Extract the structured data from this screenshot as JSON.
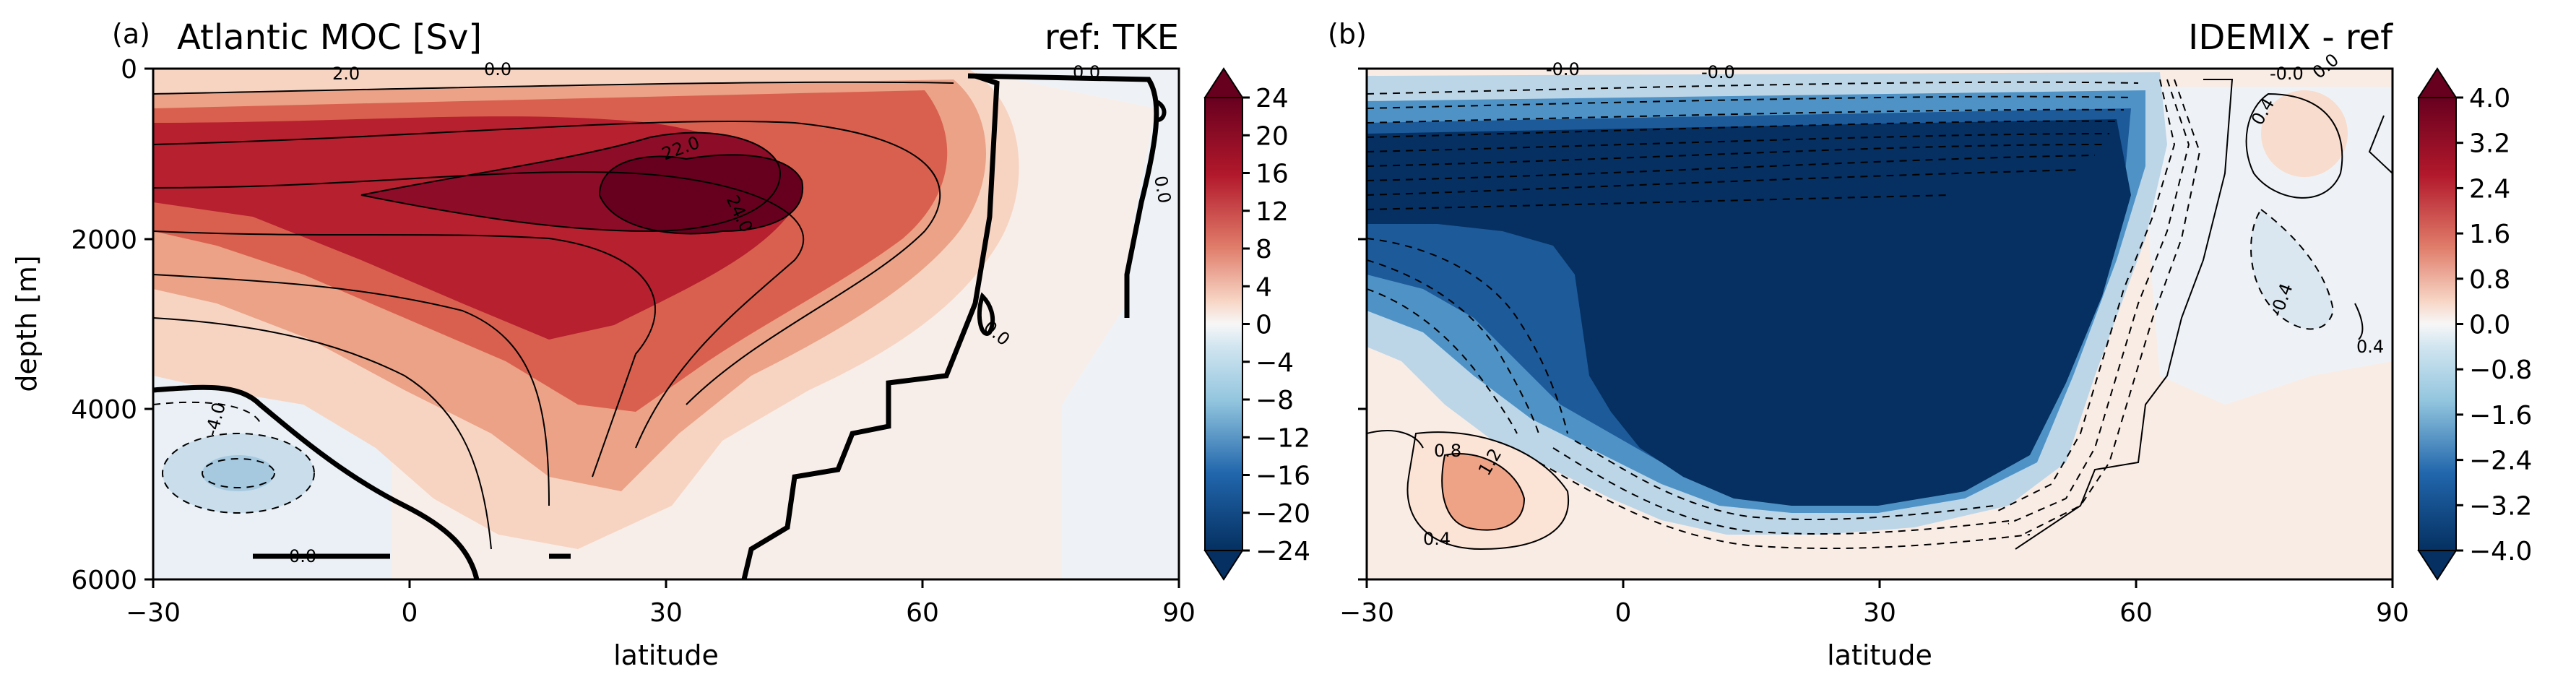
{
  "chart_data": [
    {
      "type": "heatmap",
      "panel_label": "(a)",
      "title_left": "Atlantic MOC [Sv]",
      "title_right": "ref: TKE",
      "xlabel": "latitude",
      "ylabel": "depth [m]",
      "xlim": [
        -30,
        90
      ],
      "ylim": [
        6000,
        0
      ],
      "xticks": [
        "−30",
        "0",
        "30",
        "60",
        "90"
      ],
      "yticks": [
        "0",
        "2000",
        "4000",
        "6000"
      ],
      "colorbar": {
        "ticks": [
          "24",
          "20",
          "16",
          "12",
          "8",
          "4",
          "0",
          "−4",
          "−8",
          "−12",
          "−16",
          "−20",
          "−24"
        ],
        "range": [
          -24,
          24
        ],
        "cmap": "RdBu_r",
        "extend": "both"
      },
      "contour_labels": [
        "2.0",
        "0.0",
        "0.0",
        "22.0",
        "24.0",
        "0.0",
        "0.0",
        "-4.0",
        "0.0"
      ],
      "features": [
        {
          "name": "main overturning cell",
          "peak_value": 24,
          "peak_lat": 35,
          "peak_depth": 1600
        },
        {
          "name": "abyssal cell",
          "min_value": -4,
          "center_lat": -17,
          "center_depth": 4700
        }
      ]
    },
    {
      "type": "heatmap",
      "panel_label": "(b)",
      "title_left": "",
      "title_right": "IDEMIX - ref",
      "xlabel": "latitude",
      "ylabel": "",
      "xlim": [
        -30,
        90
      ],
      "ylim": [
        6000,
        0
      ],
      "xticks": [
        "−30",
        "0",
        "30",
        "60",
        "90"
      ],
      "colorbar": {
        "ticks": [
          "4.0",
          "3.2",
          "2.4",
          "1.6",
          "0.8",
          "0.0",
          "−0.8",
          "−1.6",
          "−2.4",
          "−3.2",
          "−4.0"
        ],
        "range": [
          -4,
          4
        ],
        "cmap": "RdBu_r",
        "extend": "both"
      },
      "contour_labels": [
        "-0.0",
        "-0.0",
        "-0.0",
        "0.4",
        "0.0",
        "-0.4",
        "0.4",
        "0.8",
        "1.2",
        "0.4"
      ],
      "features": [
        {
          "name": "strong weakening",
          "value": "< -4.0",
          "lat_range": [
            -30,
            55
          ],
          "depth_range": [
            300,
            5300
          ]
        },
        {
          "name": "positive anomaly",
          "max_value": 1.2,
          "center_lat": -17,
          "center_depth": 4800
        }
      ]
    }
  ],
  "colors": {
    "dark_red": "#67001f",
    "red": "#b2182b",
    "light_red": "#f4a582",
    "pale_red": "#fbe7dc",
    "pale_blue": "#e6eef5",
    "light_blue": "#92c5de",
    "blue": "#2166ac",
    "dark_blue": "#053061"
  }
}
